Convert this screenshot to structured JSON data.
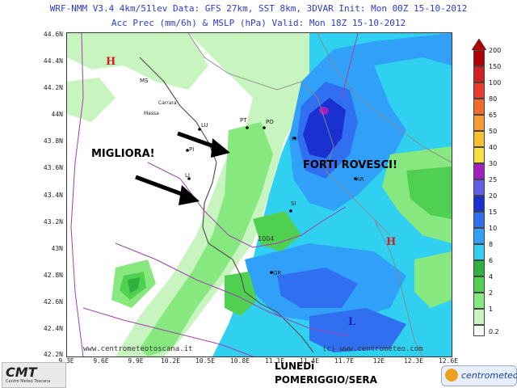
{
  "header": {
    "line1": "WRF-NMM V3.4 4km/51lev  Data: GFS 27km, SST 8km, 3DVAR  Init: Mon 00Z 15-10-2012",
    "line2": "Acc Prec (mm/6h) & MSLP (hPa)  Valid: Mon 18Z 15-10-2012"
  },
  "axes": {
    "y_ticks": [
      "44.6N",
      "44.4N",
      "44.2N",
      "44N",
      "43.8N",
      "43.6N",
      "43.4N",
      "43.2N",
      "43N",
      "42.8N",
      "42.6N",
      "42.4N",
      "42.2N"
    ],
    "x_ticks": [
      "9.3E",
      "9.6E",
      "9.9E",
      "10.2E",
      "10.5E",
      "10.8E",
      "11.1E",
      "11.4E",
      "11.7E",
      "12E",
      "12.3E",
      "12.6E"
    ]
  },
  "scale": {
    "values": [
      "200",
      "150",
      "100",
      "80",
      "65",
      "50",
      "40",
      "30",
      "25",
      "20",
      "15",
      "10",
      "8",
      "6",
      "4",
      "2",
      "1",
      "0.2"
    ],
    "colors": [
      "#b00000",
      "#d42020",
      "#ee3a2a",
      "#f46a2a",
      "#f89a30",
      "#f8c030",
      "#f8e040",
      "#a020c0",
      "#6060e8",
      "#1a30d0",
      "#3070f0",
      "#30a0f8",
      "#30d0f0",
      "#30b040",
      "#50d050",
      "#88e880",
      "#c8f4c0",
      "#ffffff"
    ]
  },
  "map_labels": {
    "high_1": "H",
    "high_2": "H",
    "low_1": "L",
    "isobar_value": "1004",
    "cities": [
      "MS",
      "Carrara",
      "Massa",
      "LU",
      "PT",
      "PO",
      "FI",
      "PI",
      "LI",
      "AR",
      "SI",
      "GR"
    ],
    "watermark_left": "www.centrometeotoscana.it",
    "watermark_right": "(c) www.centrometeo.com"
  },
  "annotations": {
    "improving": "MIGLIORA!",
    "heavy_showers": "FORTI ROVESCI!",
    "day": "LUNEDì",
    "period": "POMERIGGIO/SERA"
  },
  "logos": {
    "left_text": "CMT",
    "left_subtext": "Centro Meteo Toscana",
    "right_text": "centrometeo"
  }
}
